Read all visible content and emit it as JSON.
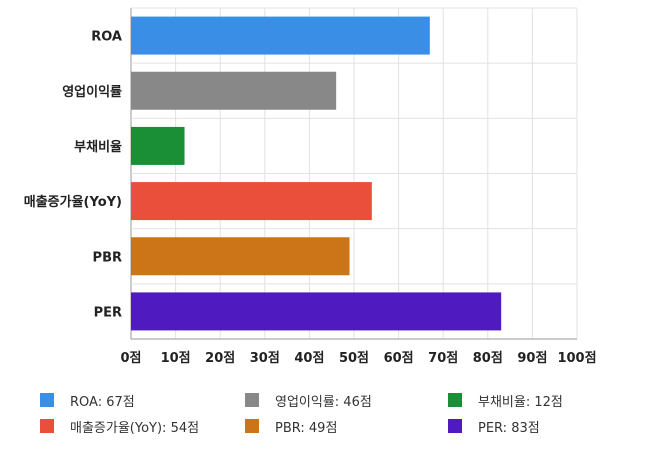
{
  "chart_data": {
    "type": "bar",
    "orientation": "horizontal",
    "categories": [
      "ROA",
      "영업이익률",
      "부채비율",
      "매출증가율(YoY)",
      "PBR",
      "PER"
    ],
    "values": [
      67,
      46,
      12,
      54,
      49,
      83
    ],
    "colors": [
      "#3a8ee6",
      "#888888",
      "#1a8f36",
      "#ea4f3c",
      "#cc7418",
      "#4f1ac0"
    ],
    "xlim": [
      0,
      100
    ],
    "tick_labels": [
      "0점",
      "10점",
      "20점",
      "30점",
      "40점",
      "50점",
      "60점",
      "70점",
      "80점",
      "90점",
      "100점"
    ],
    "grid": true,
    "legend": {
      "placement": "bottom",
      "items": [
        "ROA: 67점",
        "영업이익률: 46점",
        "부채비율: 12점",
        "매출증가율(YoY): 54점",
        "PBR: 49점",
        "PER: 83점"
      ]
    }
  }
}
